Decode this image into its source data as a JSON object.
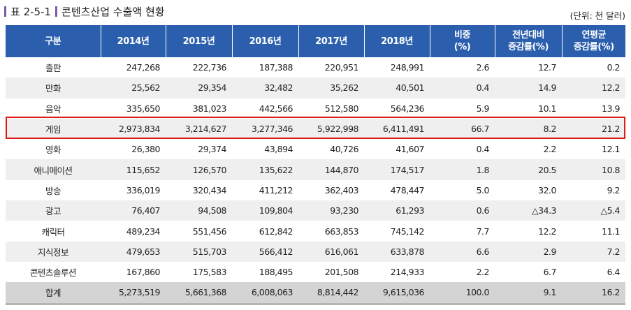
{
  "title": {
    "label": "표 2-5-1",
    "text": "콘텐츠산업 수출액 현황"
  },
  "unit": "(단위: 천 달러)",
  "colors": {
    "header_bg": "#2b5fae",
    "highlight": "#e01818",
    "title_bar": "#7b5aa6"
  },
  "columns": [
    "구분",
    "2014년",
    "2015년",
    "2016년",
    "2017년",
    "2018년",
    "비중\n(%)",
    "전년대비\n증감률(%)",
    "연평균\n증감률(%)"
  ],
  "rows": [
    [
      "출판",
      "247,268",
      "222,736",
      "187,388",
      "220,951",
      "248,991",
      "2.6",
      "12.7",
      "0.2"
    ],
    [
      "만화",
      "25,562",
      "29,354",
      "32,482",
      "35,262",
      "40,501",
      "0.4",
      "14.9",
      "12.2"
    ],
    [
      "음악",
      "335,650",
      "381,023",
      "442,566",
      "512,580",
      "564,236",
      "5.9",
      "10.1",
      "13.9"
    ],
    [
      "게임",
      "2,973,834",
      "3,214,627",
      "3,277,346",
      "5,922,998",
      "6,411,491",
      "66.7",
      "8.2",
      "21.2"
    ],
    [
      "영화",
      "26,380",
      "29,374",
      "43,894",
      "40,726",
      "41,607",
      "0.4",
      "2.2",
      "12.1"
    ],
    [
      "애니메이션",
      "115,652",
      "126,570",
      "135,622",
      "144,870",
      "174,517",
      "1.8",
      "20.5",
      "10.8"
    ],
    [
      "방송",
      "336,019",
      "320,434",
      "411,212",
      "362,403",
      "478,447",
      "5.0",
      "32.0",
      "9.2"
    ],
    [
      "광고",
      "76,407",
      "94,508",
      "109,804",
      "93,230",
      "61,293",
      "0.6",
      "△34.3",
      "△5.4"
    ],
    [
      "캐릭터",
      "489,234",
      "551,456",
      "612,842",
      "663,853",
      "745,142",
      "7.7",
      "12.2",
      "11.1"
    ],
    [
      "지식정보",
      "479,653",
      "515,703",
      "566,412",
      "616,061",
      "633,878",
      "6.6",
      "2.9",
      "7.2"
    ],
    [
      "콘텐츠솔루션",
      "167,860",
      "175,583",
      "188,495",
      "201,508",
      "214,933",
      "2.2",
      "6.7",
      "6.4"
    ],
    [
      "합계",
      "5,273,519",
      "5,661,368",
      "6,008,063",
      "8,814,442",
      "9,615,036",
      "100.0",
      "9.1",
      "16.2"
    ]
  ],
  "highlighted_row": "게임"
}
